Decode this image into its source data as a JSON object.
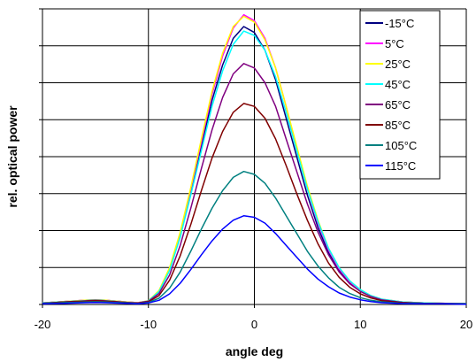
{
  "chart_data": {
    "type": "line",
    "title": "",
    "xlabel": "angle deg",
    "ylabel": "rel. optical power",
    "xlim": [
      -20,
      20
    ],
    "ylim": [
      0,
      1
    ],
    "x_ticks": [
      "-20",
      "-10",
      "0",
      "10",
      "20"
    ],
    "y_ticks_labeled": false,
    "grid": true,
    "legend_position": "top-right",
    "x": [
      -20,
      -18,
      -16,
      -15,
      -14,
      -12,
      -11,
      -10,
      -9,
      -8,
      -7,
      -6,
      -5,
      -4,
      -3,
      -2,
      -1,
      0,
      1,
      2,
      3,
      4,
      5,
      6,
      7,
      8,
      9,
      10,
      11,
      12,
      14,
      16,
      18,
      20
    ],
    "series": [
      {
        "name": "-15°C",
        "color": "#000080",
        "values": [
          0.005,
          0.01,
          0.014,
          0.016,
          0.014,
          0.008,
          0.006,
          0.012,
          0.045,
          0.12,
          0.235,
          0.38,
          0.535,
          0.69,
          0.81,
          0.9,
          0.94,
          0.92,
          0.86,
          0.76,
          0.63,
          0.5,
          0.37,
          0.26,
          0.175,
          0.115,
          0.074,
          0.046,
          0.028,
          0.017,
          0.008,
          0.005,
          0.004,
          0.003
        ]
      },
      {
        "name": "5°C",
        "color": "#ff00ff",
        "values": [
          0.005,
          0.01,
          0.014,
          0.016,
          0.014,
          0.008,
          0.006,
          0.012,
          0.045,
          0.122,
          0.24,
          0.39,
          0.55,
          0.71,
          0.84,
          0.935,
          0.98,
          0.96,
          0.9,
          0.8,
          0.67,
          0.53,
          0.39,
          0.275,
          0.185,
          0.12,
          0.077,
          0.048,
          0.029,
          0.018,
          0.008,
          0.005,
          0.004,
          0.003
        ]
      },
      {
        "name": "25°C",
        "color": "#ffff00",
        "values": [
          0.005,
          0.01,
          0.014,
          0.016,
          0.014,
          0.008,
          0.006,
          0.013,
          0.047,
          0.125,
          0.245,
          0.395,
          0.56,
          0.72,
          0.85,
          0.94,
          0.975,
          0.955,
          0.895,
          0.8,
          0.67,
          0.535,
          0.4,
          0.285,
          0.19,
          0.125,
          0.08,
          0.05,
          0.03,
          0.018,
          0.008,
          0.005,
          0.004,
          0.003
        ]
      },
      {
        "name": "45°C",
        "color": "#00ffff",
        "values": [
          0.005,
          0.009,
          0.013,
          0.015,
          0.013,
          0.007,
          0.005,
          0.012,
          0.043,
          0.115,
          0.228,
          0.37,
          0.52,
          0.67,
          0.79,
          0.88,
          0.925,
          0.91,
          0.86,
          0.77,
          0.65,
          0.52,
          0.39,
          0.28,
          0.19,
          0.125,
          0.08,
          0.05,
          0.03,
          0.018,
          0.008,
          0.005,
          0.004,
          0.003
        ]
      },
      {
        "name": "65°C",
        "color": "#800080",
        "values": [
          0.004,
          0.008,
          0.012,
          0.014,
          0.012,
          0.007,
          0.005,
          0.011,
          0.037,
          0.1,
          0.2,
          0.325,
          0.46,
          0.59,
          0.7,
          0.78,
          0.815,
          0.8,
          0.75,
          0.67,
          0.56,
          0.45,
          0.34,
          0.245,
          0.168,
          0.11,
          0.07,
          0.044,
          0.027,
          0.016,
          0.007,
          0.004,
          0.003,
          0.003
        ]
      },
      {
        "name": "85°C",
        "color": "#800000",
        "values": [
          0.004,
          0.008,
          0.011,
          0.013,
          0.011,
          0.006,
          0.004,
          0.009,
          0.03,
          0.082,
          0.165,
          0.27,
          0.385,
          0.495,
          0.585,
          0.65,
          0.68,
          0.67,
          0.63,
          0.56,
          0.47,
          0.375,
          0.285,
          0.205,
          0.14,
          0.092,
          0.058,
          0.036,
          0.022,
          0.013,
          0.006,
          0.004,
          0.003,
          0.002
        ]
      },
      {
        "name": "105°C",
        "color": "#008080",
        "values": [
          0.003,
          0.006,
          0.008,
          0.009,
          0.008,
          0.005,
          0.003,
          0.007,
          0.021,
          0.055,
          0.11,
          0.18,
          0.255,
          0.325,
          0.385,
          0.43,
          0.45,
          0.44,
          0.41,
          0.36,
          0.3,
          0.24,
          0.18,
          0.13,
          0.09,
          0.058,
          0.037,
          0.023,
          0.014,
          0.009,
          0.004,
          0.003,
          0.002,
          0.002
        ]
      },
      {
        "name": "115°C",
        "color": "#0000ff",
        "values": [
          0.002,
          0.004,
          0.006,
          0.007,
          0.006,
          0.004,
          0.002,
          0.005,
          0.014,
          0.036,
          0.072,
          0.118,
          0.168,
          0.215,
          0.255,
          0.285,
          0.3,
          0.295,
          0.275,
          0.24,
          0.2,
          0.16,
          0.12,
          0.086,
          0.06,
          0.039,
          0.025,
          0.016,
          0.01,
          0.006,
          0.003,
          0.002,
          0.002,
          0.001
        ]
      }
    ]
  }
}
